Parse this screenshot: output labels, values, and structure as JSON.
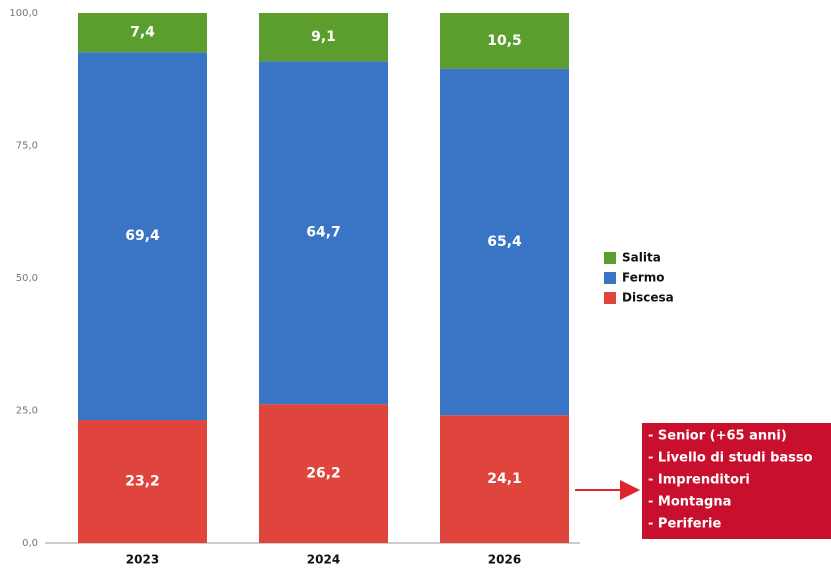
{
  "chart_data": {
    "type": "stacked_bar",
    "categories": [
      "2023",
      "2024",
      "2026"
    ],
    "series": [
      {
        "name": "Discesa",
        "color": "#e0453d",
        "values": [
          23.2,
          26.2,
          24.1
        ],
        "value_labels": [
          "23,2",
          "26,2",
          "24,1"
        ]
      },
      {
        "name": "Fermo",
        "color": "#3a74c4",
        "values": [
          69.4,
          64.7,
          65.4
        ],
        "value_labels": [
          "69,4",
          "64,7",
          "65,4"
        ]
      },
      {
        "name": "Salita",
        "color": "#5c9e2e",
        "values": [
          7.4,
          9.1,
          10.5
        ],
        "value_labels": [
          "7,4",
          "9,1",
          "10,5"
        ]
      }
    ],
    "ylim": [
      0,
      100
    ],
    "yticks": [
      {
        "value": 0,
        "label": "0,0"
      },
      {
        "value": 25,
        "label": "25,0"
      },
      {
        "value": 50,
        "label": "50,0"
      },
      {
        "value": 75,
        "label": "75,0"
      },
      {
        "value": 100,
        "label": "100,0"
      }
    ],
    "legend": "right",
    "annotation": {
      "lines": [
        "- Senior (+65 anni)",
        "- Livello di studi basso",
        "- Imprenditori",
        "- Montagna",
        "- Periferie"
      ],
      "color": "#c8102e"
    }
  }
}
